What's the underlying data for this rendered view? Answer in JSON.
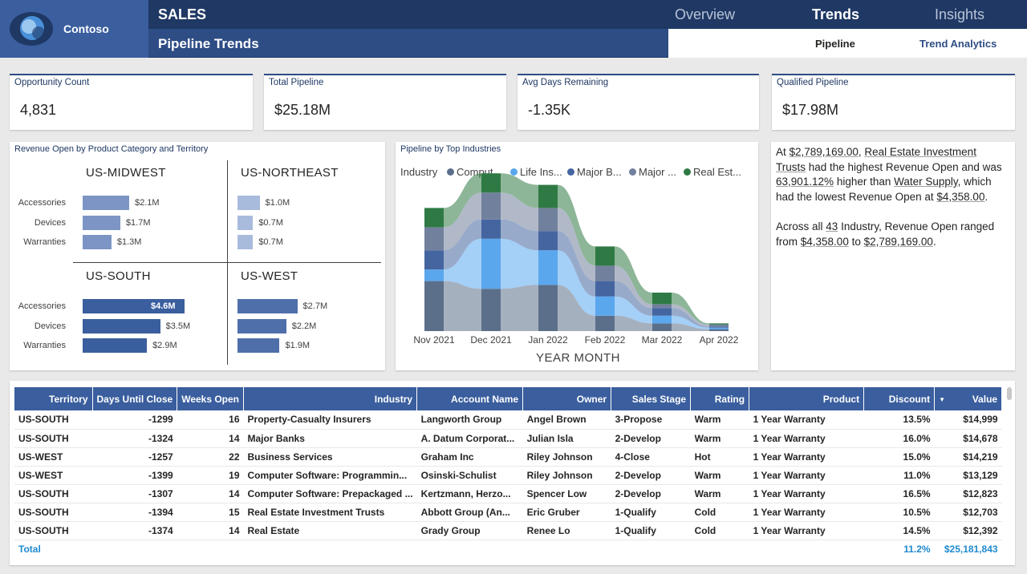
{
  "header": {
    "brand": "Contoso",
    "section": "SALES",
    "page_title": "Pipeline Trends",
    "tabs": [
      "Overview",
      "Trends",
      "Insights"
    ],
    "active_tab": "Trends",
    "sub_tabs": [
      "Pipeline",
      "Trend Analytics"
    ],
    "active_sub_tab": "Pipeline"
  },
  "kpis": [
    {
      "label": "Opportunity Count",
      "value": "4,831"
    },
    {
      "label": "Total Pipeline",
      "value": "$25.18M"
    },
    {
      "label": "Avg Days Remaining",
      "value": "-1.35K"
    },
    {
      "label": "Qualified Pipeline",
      "value": "$17.98M"
    }
  ],
  "revenue_chart": {
    "title": "Revenue Open by Product Category and Territory"
  },
  "pipeline_chart": {
    "title": "Pipeline by Top Industries",
    "legend_title": "Industry",
    "x_axis_label": "YEAR MONTH"
  },
  "chart_data": [
    {
      "type": "bar",
      "title": "Revenue Open by Product Category and Territory",
      "categories": [
        "Accessories",
        "Devices",
        "Warranties"
      ],
      "series": [
        {
          "name": "US-MIDWEST",
          "values": [
            2.1,
            1.7,
            1.3
          ],
          "labels": [
            "$2.1M",
            "$1.7M",
            "$1.3M"
          ],
          "color": "#7d95c4"
        },
        {
          "name": "US-NORTHEAST",
          "values": [
            1.0,
            0.7,
            0.7
          ],
          "labels": [
            "$1.0M",
            "$0.7M",
            "$0.7M"
          ],
          "color": "#a9bbdc"
        },
        {
          "name": "US-SOUTH",
          "values": [
            4.6,
            3.5,
            2.9
          ],
          "labels": [
            "$4.6M",
            "$3.5M",
            "$2.9M"
          ],
          "color": "#3a5e9e"
        },
        {
          "name": "US-WEST",
          "values": [
            2.7,
            2.2,
            1.9
          ],
          "labels": [
            "$2.7M",
            "$2.2M",
            "$1.9M"
          ],
          "color": "#4f6faa"
        }
      ],
      "xlim": [
        0,
        4.6
      ]
    },
    {
      "type": "area",
      "title": "Pipeline by Top Industries",
      "xlabel": "YEAR MONTH",
      "categories": [
        "Nov 2021",
        "Dec 2021",
        "Jan 2022",
        "Feb 2022",
        "Mar 2022",
        "Apr 2022"
      ],
      "series": [
        {
          "name": "Comput...",
          "color": "#5b6f8a",
          "values": [
            1.3,
            1.1,
            1.2,
            0.4,
            0.2,
            0.05
          ]
        },
        {
          "name": "Life Ins...",
          "color": "#5aa7ee",
          "values": [
            0.3,
            1.3,
            0.9,
            0.5,
            0.2,
            0.04
          ]
        },
        {
          "name": "Major B...",
          "color": "#44659f",
          "values": [
            0.5,
            0.5,
            0.5,
            0.4,
            0.2,
            0.03
          ]
        },
        {
          "name": "Major ...",
          "color": "#71809c",
          "values": [
            0.6,
            0.7,
            0.6,
            0.4,
            0.1,
            0.05
          ]
        },
        {
          "name": "Real Est...",
          "color": "#2f7a44",
          "values": [
            0.5,
            0.5,
            0.6,
            0.5,
            0.3,
            0.03
          ]
        }
      ]
    }
  ],
  "narrative": {
    "p1": [
      {
        "t": "At ",
        "u": false
      },
      {
        "t": "$2,789,169.00",
        "u": true
      },
      {
        "t": ", ",
        "u": false
      },
      {
        "t": "Real Estate Investment Trusts",
        "u": true
      },
      {
        "t": " had the highest Revenue Open and was ",
        "u": false
      },
      {
        "t": "63,901.12%",
        "u": true
      },
      {
        "t": " higher than ",
        "u": false
      },
      {
        "t": "Water Supply",
        "u": true
      },
      {
        "t": ", which had the lowest Revenue Open at ",
        "u": false
      },
      {
        "t": "$4,358.00",
        "u": true
      },
      {
        "t": ".",
        "u": false
      }
    ],
    "p2": [
      {
        "t": "Across all ",
        "u": false
      },
      {
        "t": "43",
        "u": true
      },
      {
        "t": " Industry, Revenue Open ranged from ",
        "u": false
      },
      {
        "t": "$4,358.00",
        "u": true
      },
      {
        "t": " to ",
        "u": false
      },
      {
        "t": "$2,789,169.00",
        "u": true
      },
      {
        "t": ".",
        "u": false
      }
    ]
  },
  "table": {
    "columns": [
      "Territory",
      "Days Until Close",
      "Weeks Open",
      "Industry",
      "Account Name",
      "Owner",
      "Sales Stage",
      "Rating",
      "Product",
      "Discount",
      "Value"
    ],
    "sort_indicator": "▼",
    "rows": [
      [
        "US-SOUTH",
        "-1299",
        "16",
        "Property-Casualty Insurers",
        "Langworth Group",
        "Angel Brown",
        "3-Propose",
        "Warm",
        "1 Year Warranty",
        "13.5%",
        "$14,999"
      ],
      [
        "US-SOUTH",
        "-1324",
        "14",
        "Major Banks",
        "A. Datum Corporat...",
        "Julian Isla",
        "2-Develop",
        "Warm",
        "1 Year Warranty",
        "16.0%",
        "$14,678"
      ],
      [
        "US-WEST",
        "-1257",
        "22",
        "Business Services",
        "Graham Inc",
        "Riley Johnson",
        "4-Close",
        "Hot",
        "1 Year Warranty",
        "15.0%",
        "$14,219"
      ],
      [
        "US-WEST",
        "-1399",
        "19",
        "Computer Software: Programmin...",
        "Osinski-Schulist",
        "Riley Johnson",
        "2-Develop",
        "Warm",
        "1 Year Warranty",
        "11.0%",
        "$13,129"
      ],
      [
        "US-SOUTH",
        "-1307",
        "14",
        "Computer Software: Prepackaged ...",
        "Kertzmann, Herzo...",
        "Spencer Low",
        "2-Develop",
        "Warm",
        "1 Year Warranty",
        "16.5%",
        "$12,823"
      ],
      [
        "US-SOUTH",
        "-1394",
        "15",
        "Real Estate Investment Trusts",
        "Abbott Group (An...",
        "Eric Gruber",
        "1-Qualify",
        "Cold",
        "1 Year Warranty",
        "10.5%",
        "$12,703"
      ],
      [
        "US-SOUTH",
        "-1374",
        "14",
        "Real Estate",
        "Grady Group",
        "Renee Lo",
        "1-Qualify",
        "Cold",
        "1 Year Warranty",
        "14.5%",
        "$12,392"
      ]
    ],
    "total": {
      "label": "Total",
      "discount": "11.2%",
      "value": "$25,181,843"
    }
  }
}
